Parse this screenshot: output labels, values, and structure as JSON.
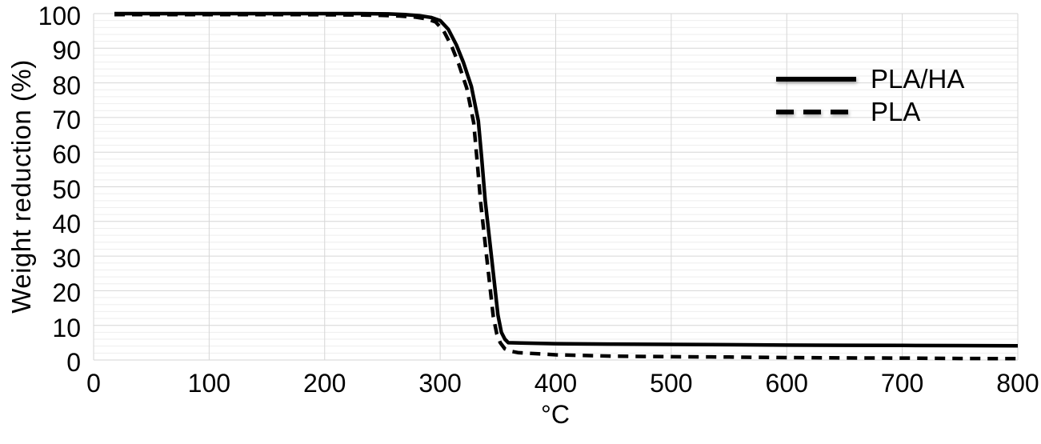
{
  "chart_data": {
    "type": "line",
    "title": "",
    "xlabel": "°C",
    "ylabel": "Weight reduction (%)",
    "xlim": [
      0,
      800
    ],
    "ylim": [
      0,
      100
    ],
    "x_ticks": [
      0,
      100,
      200,
      300,
      400,
      500,
      600,
      700,
      800
    ],
    "y_ticks": [
      0,
      10,
      20,
      30,
      40,
      50,
      60,
      70,
      80,
      90,
      100
    ],
    "grid": {
      "show_major": true,
      "show_minor": true,
      "x_major_step": 100,
      "y_major_step": 10,
      "y_minor_step": 2,
      "major_color": "#d6d6d6",
      "minor_color": "#eeeeee"
    },
    "legend": {
      "position": "top-right",
      "entries": [
        "PLA/HA",
        "PLA"
      ]
    },
    "series": [
      {
        "name": "PLA/HA",
        "line_style": "solid",
        "color": "#000000",
        "points": [
          [
            18,
            100
          ],
          [
            60,
            100
          ],
          [
            120,
            100
          ],
          [
            180,
            100
          ],
          [
            230,
            100
          ],
          [
            255,
            99.9
          ],
          [
            270,
            99.7
          ],
          [
            282,
            99.4
          ],
          [
            292,
            98.9
          ],
          [
            300,
            98
          ],
          [
            307,
            95.5
          ],
          [
            314,
            91
          ],
          [
            320,
            86
          ],
          [
            327,
            79
          ],
          [
            333,
            69
          ],
          [
            336,
            58
          ],
          [
            339,
            46
          ],
          [
            343,
            34
          ],
          [
            347,
            22
          ],
          [
            350,
            13
          ],
          [
            353,
            8
          ],
          [
            356,
            6
          ],
          [
            359,
            5
          ],
          [
            370,
            4.9
          ],
          [
            400,
            4.7
          ],
          [
            450,
            4.6
          ],
          [
            500,
            4.5
          ],
          [
            550,
            4.4
          ],
          [
            600,
            4.3
          ],
          [
            650,
            4.25
          ],
          [
            700,
            4.2
          ],
          [
            750,
            4.15
          ],
          [
            800,
            4.1
          ]
        ]
      },
      {
        "name": "PLA",
        "line_style": "dashed",
        "color": "#000000",
        "points": [
          [
            18,
            99.7
          ],
          [
            60,
            99.7
          ],
          [
            120,
            99.7
          ],
          [
            180,
            99.7
          ],
          [
            230,
            99.6
          ],
          [
            250,
            99.5
          ],
          [
            265,
            99.3
          ],
          [
            278,
            99
          ],
          [
            288,
            98.5
          ],
          [
            296,
            97.6
          ],
          [
            303,
            95
          ],
          [
            310,
            90.5
          ],
          [
            316,
            85.5
          ],
          [
            323,
            78.5
          ],
          [
            329,
            68.5
          ],
          [
            332,
            57.5
          ],
          [
            335,
            45.5
          ],
          [
            339,
            33.5
          ],
          [
            343,
            21.5
          ],
          [
            346,
            12.5
          ],
          [
            349,
            7.5
          ],
          [
            352,
            5
          ],
          [
            356,
            3.2
          ],
          [
            360,
            2.6
          ],
          [
            368,
            2.1
          ],
          [
            400,
            1.5
          ],
          [
            450,
            1.1
          ],
          [
            500,
            0.95
          ],
          [
            550,
            0.85
          ],
          [
            600,
            0.7
          ],
          [
            650,
            0.6
          ],
          [
            700,
            0.55
          ],
          [
            750,
            0.45
          ],
          [
            800,
            0.4
          ]
        ]
      }
    ]
  }
}
